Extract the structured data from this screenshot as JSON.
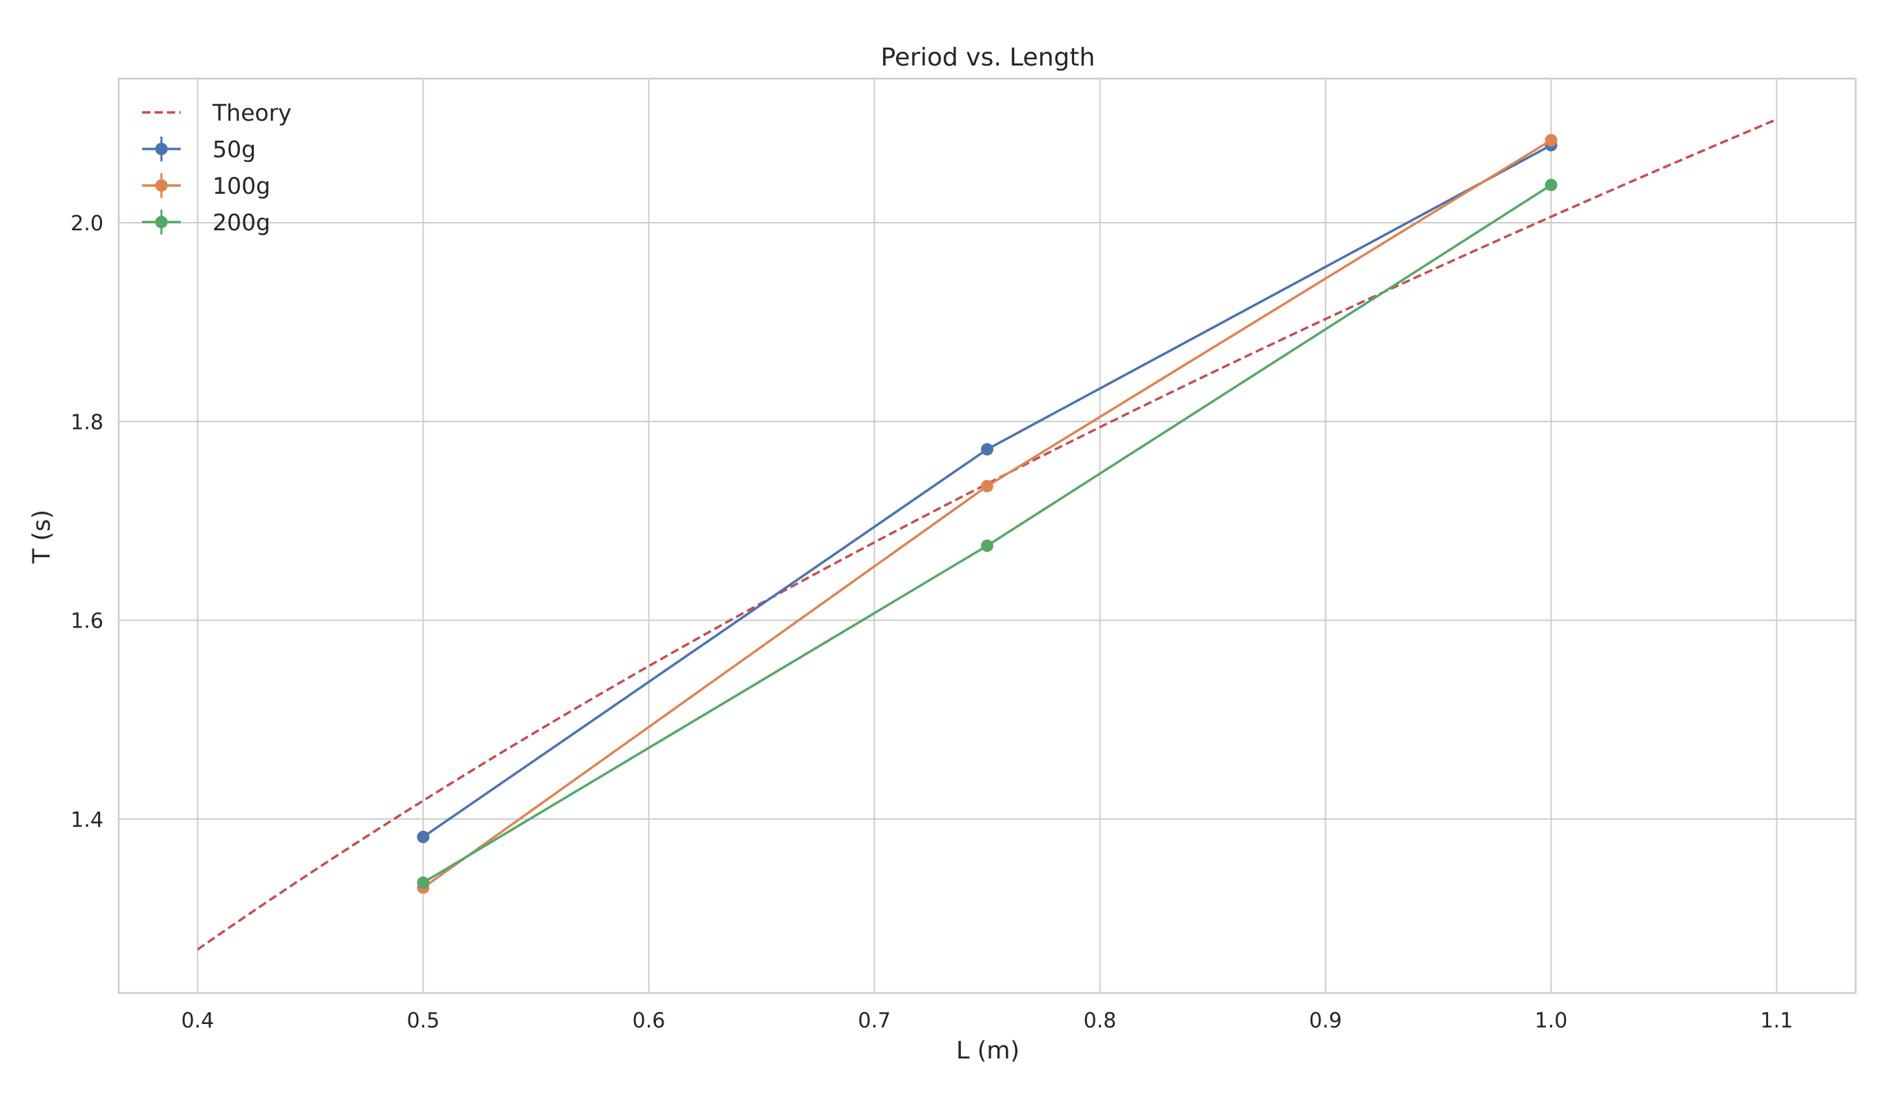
{
  "chart_data": {
    "type": "line",
    "title": "Period vs. Length",
    "xlabel": "L (m)",
    "ylabel": "T (s)",
    "xlim": [
      0.365,
      1.135
    ],
    "ylim": [
      1.225,
      2.145
    ],
    "x_ticks": [
      0.4,
      0.5,
      0.6,
      0.7,
      0.8,
      0.9,
      1.0,
      1.1
    ],
    "x_tick_labels": [
      "0.4",
      "0.5",
      "0.6",
      "0.7",
      "0.8",
      "0.9",
      "1.0",
      "1.1"
    ],
    "y_ticks": [
      1.4,
      1.6,
      1.8,
      2.0
    ],
    "y_tick_labels": [
      "1.4",
      "1.6",
      "1.8",
      "2.0"
    ],
    "grid": true,
    "legend_position": "top-left",
    "theory": {
      "name": "Theory",
      "color": "#c44e52",
      "style": "dashed",
      "x_range": [
        0.4,
        1.1
      ],
      "formula": "T = 2*pi*sqrt(L/g), g = 9.81"
    },
    "series": [
      {
        "name": "50g",
        "color": "#4c72b0",
        "x": [
          0.5,
          0.75,
          1.0
        ],
        "y": [
          1.382,
          1.772,
          2.078
        ]
      },
      {
        "name": "100g",
        "color": "#dd8452",
        "x": [
          0.5,
          0.75,
          1.0
        ],
        "y": [
          1.331,
          1.735,
          2.083
        ]
      },
      {
        "name": "200g",
        "color": "#55a868",
        "x": [
          0.5,
          0.75,
          1.0
        ],
        "y": [
          1.336,
          1.675,
          2.038
        ]
      }
    ]
  }
}
